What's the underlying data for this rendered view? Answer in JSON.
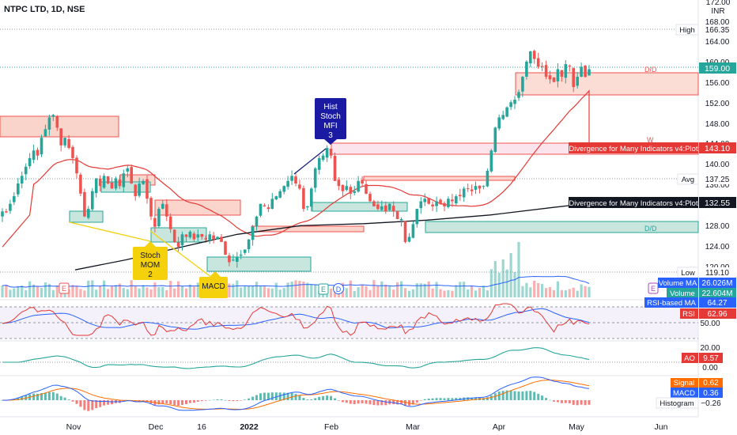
{
  "header": {
    "symbol_text": "NTPC LTD, 1D, NSE"
  },
  "axis": {
    "currency": "INR",
    "price_ticks": [
      "172.00",
      "168.00",
      "164.00",
      "160.00",
      "156.00",
      "152.00",
      "148.00",
      "144.00",
      "140.00",
      "136.00",
      "132.00",
      "128.00",
      "124.00",
      "120.00"
    ],
    "x_ticks": [
      "Nov",
      "Dec",
      "16",
      "2022",
      "Feb",
      "Mar",
      "Apr",
      "May",
      "Jun"
    ],
    "rsi_ticks": [
      "50.00"
    ],
    "ao_ticks": [
      "20.00",
      "0.00"
    ]
  },
  "price_labels": {
    "high": {
      "label": "High",
      "value": "166.35"
    },
    "last": {
      "value": "159.00"
    },
    "avg": {
      "label": "Avg",
      "value": "137.25"
    },
    "low": {
      "label": "Low",
      "value": "119.10"
    },
    "div_red": {
      "label": "Divergence for Many Indicators v4:Plot",
      "value": "143.10"
    },
    "div_black": {
      "label": "Divergence for Many Indicators v4:Plot",
      "value": "132.55"
    }
  },
  "zone_labels": {
    "dd_top": "D/D",
    "dd_mid": "D/D",
    "w": "W"
  },
  "annotations": {
    "hist_stoch_mfi": [
      "Hist",
      "Stoch",
      "MFI",
      "3"
    ],
    "stoch_mom": [
      "Stoch",
      "MOM",
      "2"
    ],
    "macd": [
      "MACD"
    ]
  },
  "event_badges": {
    "e1": "E",
    "e2": "E",
    "d": "D",
    "e3": "E"
  },
  "indicators": {
    "volume_ma": {
      "label": "Volume MA",
      "value": "26.026M"
    },
    "volume": {
      "label": "Volume",
      "value": "22.604M"
    },
    "rsi_ma": {
      "label": "RSI-based MA",
      "value": "64.27"
    },
    "rsi": {
      "label": "RSI",
      "value": "62.96"
    },
    "ao": {
      "label": "AO",
      "value": "9.57"
    },
    "signal": {
      "label": "Signal",
      "value": "0.62"
    },
    "macd": {
      "label": "MACD",
      "value": "0.36"
    },
    "histogram": {
      "label": "Histogram",
      "value": "−0.26"
    }
  },
  "colors": {
    "up": "#26a69a",
    "down": "#ef5350",
    "ma_red": "#e53935",
    "ma_black": "#131722",
    "rsi_purple": "#7e57c2",
    "macd_blue": "#2962ff",
    "signal_orange": "#ff6d00",
    "badge_blue": "#2962ff"
  },
  "chart_data": {
    "type": "candlestick",
    "title": "NTPC LTD, 1D, NSE",
    "ylim": [
      118,
      173
    ],
    "closes": [
      131.0,
      130.8,
      132.5,
      134.0,
      136.5,
      138.0,
      139.8,
      141.5,
      143.0,
      142.0,
      145.5,
      147.2,
      149.5,
      150.0,
      147.5,
      144.0,
      145.5,
      143.5,
      141.5,
      138.5,
      134.5,
      130.0,
      131.5,
      135.0,
      137.5,
      136.0,
      138.0,
      136.5,
      135.5,
      137.5,
      136.0,
      138.5,
      139.5,
      136.5,
      134.0,
      136.5,
      137.0,
      133.5,
      130.0,
      128.0,
      131.5,
      132.5,
      130.0,
      127.5,
      125.0,
      124.0,
      126.5,
      126.0,
      127.0,
      125.5,
      126.5,
      126.0,
      125.5,
      126.5,
      125.5,
      126.0,
      125.0,
      122.5,
      121.0,
      121.5,
      122.0,
      122.5,
      123.5,
      125.5,
      128.0,
      130.0,
      132.5,
      132.0,
      131.5,
      133.5,
      134.0,
      135.0,
      136.0,
      137.0,
      138.0,
      136.5,
      135.5,
      131.5,
      132.0,
      135.5,
      139.5,
      141.5,
      142.0,
      143.5,
      142.0,
      137.0,
      136.0,
      135.0,
      136.0,
      134.5,
      135.0,
      137.0,
      136.5,
      134.5,
      133.0,
      132.0,
      131.5,
      132.0,
      131.0,
      132.5,
      131.0,
      129.5,
      129.5,
      125.0,
      126.0,
      128.5,
      131.5,
      133.0,
      133.5,
      132.5,
      132.0,
      133.0,
      132.5,
      132.0,
      133.5,
      133.0,
      134.0,
      134.0,
      135.5,
      135.5,
      135.0,
      136.0,
      135.5,
      136.0,
      139.0,
      143.0,
      147.5,
      149.5,
      150.0,
      151.5,
      152.5,
      153.0,
      154.5,
      157.5,
      160.5,
      162.5,
      161.0,
      159.5,
      159.5,
      157.5,
      157.0,
      156.5,
      159.0,
      157.5,
      160.0,
      159.5,
      155.5,
      157.5,
      159.5,
      157.5,
      159.0
    ],
    "ma_ribbon_red": "rising 50-day moving average",
    "ma_black": "rising 200-day moving average"
  }
}
